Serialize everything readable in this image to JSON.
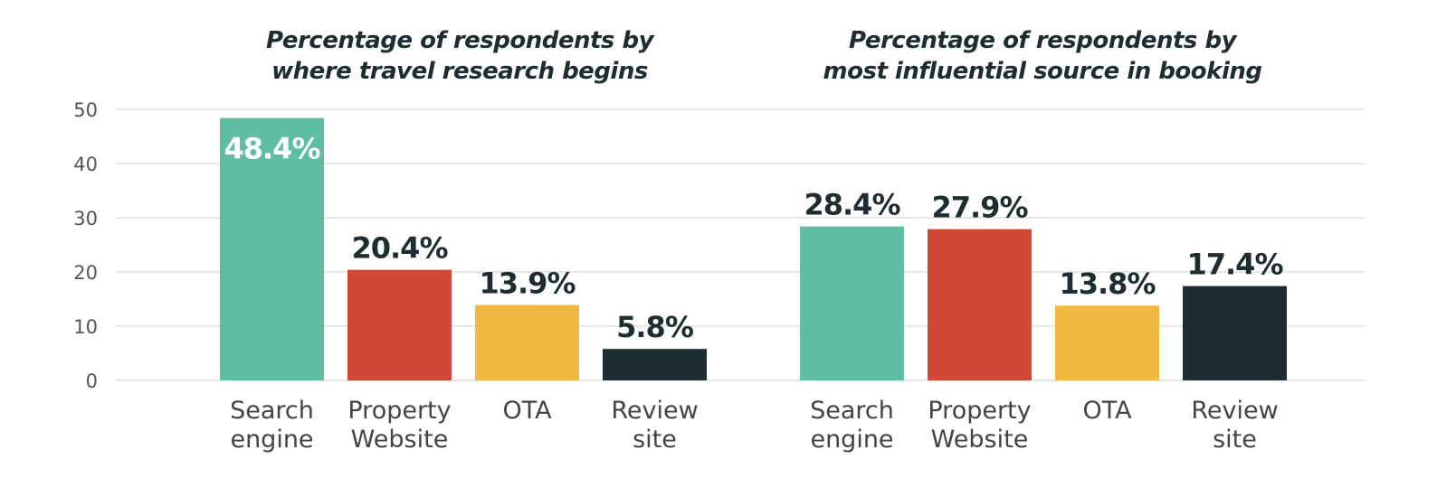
{
  "chart_data": [
    {
      "type": "bar",
      "title_lines": [
        "Percentage of respondents by",
        "where travel research begins"
      ],
      "categories": [
        [
          "Search",
          "engine"
        ],
        [
          "Property",
          "Website"
        ],
        [
          "OTA"
        ],
        [
          "Review",
          "site"
        ]
      ],
      "values": [
        48.4,
        20.4,
        13.9,
        5.8
      ],
      "value_labels": [
        "48.4%",
        "20.4%",
        "13.9%",
        "5.8%"
      ],
      "colors": [
        "#5fbda4",
        "#d14836",
        "#f0b840",
        "#1e2d32"
      ],
      "ylim": [
        0,
        50
      ],
      "yticks": [
        "0",
        "10",
        "20",
        "30",
        "40",
        "50"
      ],
      "grid": true
    },
    {
      "type": "bar",
      "title_lines": [
        "Percentage of respondents by",
        "most influential source in booking"
      ],
      "categories": [
        [
          "Search",
          "engine"
        ],
        [
          "Property",
          "Website"
        ],
        [
          "OTA"
        ],
        [
          "Review",
          "site"
        ]
      ],
      "values": [
        28.4,
        27.9,
        13.8,
        17.4
      ],
      "value_labels": [
        "28.4%",
        "27.9%",
        "13.8%",
        "17.4%"
      ],
      "colors": [
        "#5fbda4",
        "#d14836",
        "#f0b840",
        "#1e2d32"
      ],
      "ylim": [
        0,
        50
      ],
      "yticks": [
        "0",
        "10",
        "20",
        "30",
        "40",
        "50"
      ],
      "grid": true
    }
  ]
}
